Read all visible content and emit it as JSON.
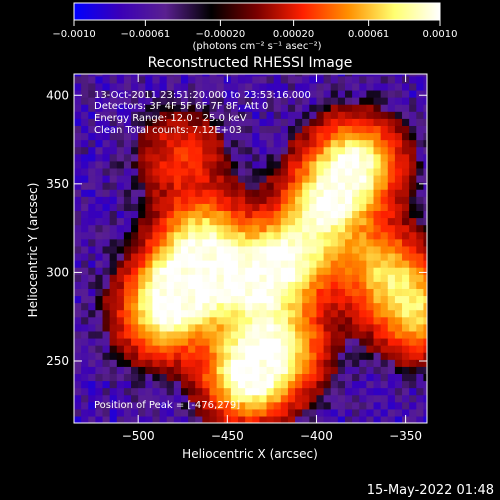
{
  "chart_data": {
    "type": "heatmap",
    "title": "Reconstructed RHESSI Image",
    "xlabel": "Heliocentric X (arcsec)",
    "ylabel": "Heliocentric Y (arcsec)",
    "xlim": [
      -536,
      -338
    ],
    "ylim": [
      215,
      412
    ],
    "x_ticks": [
      -500,
      -450,
      -400,
      -350
    ],
    "x_tick_labels": [
      "−500",
      "−450",
      "−400",
      "−350"
    ],
    "y_ticks": [
      250,
      300,
      350,
      400
    ],
    "y_tick_labels": [
      "250",
      "300",
      "350",
      "400"
    ],
    "colorbar": {
      "range": [
        -0.001,
        0.001
      ],
      "ticks": [
        -0.001,
        -0.00061,
        -0.0002,
        0.0002,
        0.00061,
        0.001
      ],
      "tick_labels": [
        "−0.0010",
        "−0.00061",
        "−0.00020",
        "0.00020",
        "0.00061",
        "0.0010"
      ],
      "unit_label": "(photons cm⁻² s⁻¹ asec⁻²)",
      "colormap": [
        "#0000ff",
        "#3a00b8",
        "#5a2090",
        "#000000",
        "#7a0000",
        "#ff2000",
        "#ff9000",
        "#ffff70",
        "#ffffff"
      ]
    },
    "annotations": [
      "13-Oct-2011 23:51:20.000 to 23:53:16.000",
      "Detectors: 3F 4F 5F 6F 7F 8F, Att 0",
      "Energy Range: 12.0 - 25.0 keV",
      "Clean    Total counts: 7.12E+03"
    ],
    "peak_label": "Position of Peak = [-476,279]",
    "emission_sources": [
      {
        "x": -440,
        "y": 240,
        "intensity": 1.0
      },
      {
        "x": -478,
        "y": 290,
        "intensity": 0.9
      },
      {
        "x": -465,
        "y": 318,
        "intensity": 0.7
      },
      {
        "x": -380,
        "y": 360,
        "intensity": 0.9
      },
      {
        "x": -397,
        "y": 335,
        "intensity": 0.75
      },
      {
        "x": -418,
        "y": 305,
        "intensity": 0.75
      },
      {
        "x": -440,
        "y": 290,
        "intensity": 0.65
      },
      {
        "x": -490,
        "y": 272,
        "intensity": 0.55
      },
      {
        "x": -345,
        "y": 275,
        "intensity": 0.65
      },
      {
        "x": -365,
        "y": 300,
        "intensity": 0.6
      },
      {
        "x": -420,
        "y": 258,
        "intensity": 0.6
      },
      {
        "x": -478,
        "y": 365,
        "intensity": 0.35
      }
    ]
  },
  "footer_timestamp": "15-May-2022 01:48"
}
